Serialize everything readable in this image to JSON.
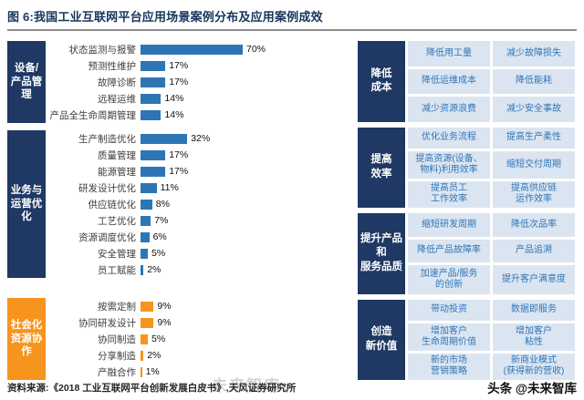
{
  "title": "图 6:我国工业互联网平台应用场景案例分布及应用案例成效",
  "colors": {
    "navy": "#1F3864",
    "blue": "#2E75B6",
    "orange": "#F7941E",
    "cell_bg": "#DBE5F1",
    "cell_text": "#2E75B6"
  },
  "chart_data": {
    "type": "bar",
    "orientation": "horizontal",
    "unit": "%",
    "value_range": [
      0,
      70
    ],
    "groups": [
      {
        "label": "设备/\n产品管理",
        "box_color": "#1F3864",
        "bar_color": "#2E75B6",
        "items": [
          {
            "name": "状态监测与报警",
            "value": 70
          },
          {
            "name": "预测性维护",
            "value": 17
          },
          {
            "name": "故障诊断",
            "value": 17
          },
          {
            "name": "远程运维",
            "value": 14
          },
          {
            "name": "产品全生命周期管理",
            "value": 14
          }
        ]
      },
      {
        "label": "业务与\n运营优化",
        "box_color": "#1F3864",
        "bar_color": "#2E75B6",
        "items": [
          {
            "name": "生产制造优化",
            "value": 32
          },
          {
            "name": "质量管理",
            "value": 17
          },
          {
            "name": "能源管理",
            "value": 17
          },
          {
            "name": "研发设计优化",
            "value": 11
          },
          {
            "name": "供应链优化",
            "value": 8
          },
          {
            "name": "工艺优化",
            "value": 7
          },
          {
            "name": "资源调度优化",
            "value": 6
          },
          {
            "name": "安全管理",
            "value": 5
          },
          {
            "name": "员工赋能",
            "value": 2
          }
        ]
      },
      {
        "label": "社会化\n资源协作",
        "box_color": "#F7941E",
        "bar_color": "#F7941E",
        "items": [
          {
            "name": "按需定制",
            "value": 9
          },
          {
            "name": "协同研发设计",
            "value": 9
          },
          {
            "name": "协同制造",
            "value": 5
          },
          {
            "name": "分享制造",
            "value": 2
          },
          {
            "name": "产融合作",
            "value": 1
          }
        ]
      }
    ]
  },
  "benefits": [
    {
      "label": "降低\n成本",
      "items": [
        "降低用工量",
        "减少故障损失",
        "降低运维成本",
        "降低能耗",
        "减少资源浪费",
        "减少安全事故"
      ]
    },
    {
      "label": "提高\n效率",
      "items": [
        "优化业务流程",
        "提高生产柔性",
        "提高资源(设备、\n物料)利用效率",
        "缩短交付周期",
        "提高员工\n工作效率",
        "提高供应链\n运作效率"
      ]
    },
    {
      "label": "提升产品\n和\n服务品质",
      "items": [
        "缩短研发周期",
        "降低次品率",
        "降低产品故障率",
        "产品追溯",
        "加速产品/服务\n的创新",
        "提升客户满意度"
      ]
    },
    {
      "label": "创造\n新价值",
      "items": [
        "带动投资",
        "数据即服务",
        "增加客户\n生命周期价值",
        "增加客户\n粘性",
        "新的市场\n营销策略",
        "新商业模式\n(获得新的营收)"
      ]
    }
  ],
  "footer": {
    "source": "资料来源:《2018 工业互联网平台创新发展白皮书》,天风证券研究所",
    "watermark": "未来智库",
    "brand": "头条 @未来智库"
  }
}
